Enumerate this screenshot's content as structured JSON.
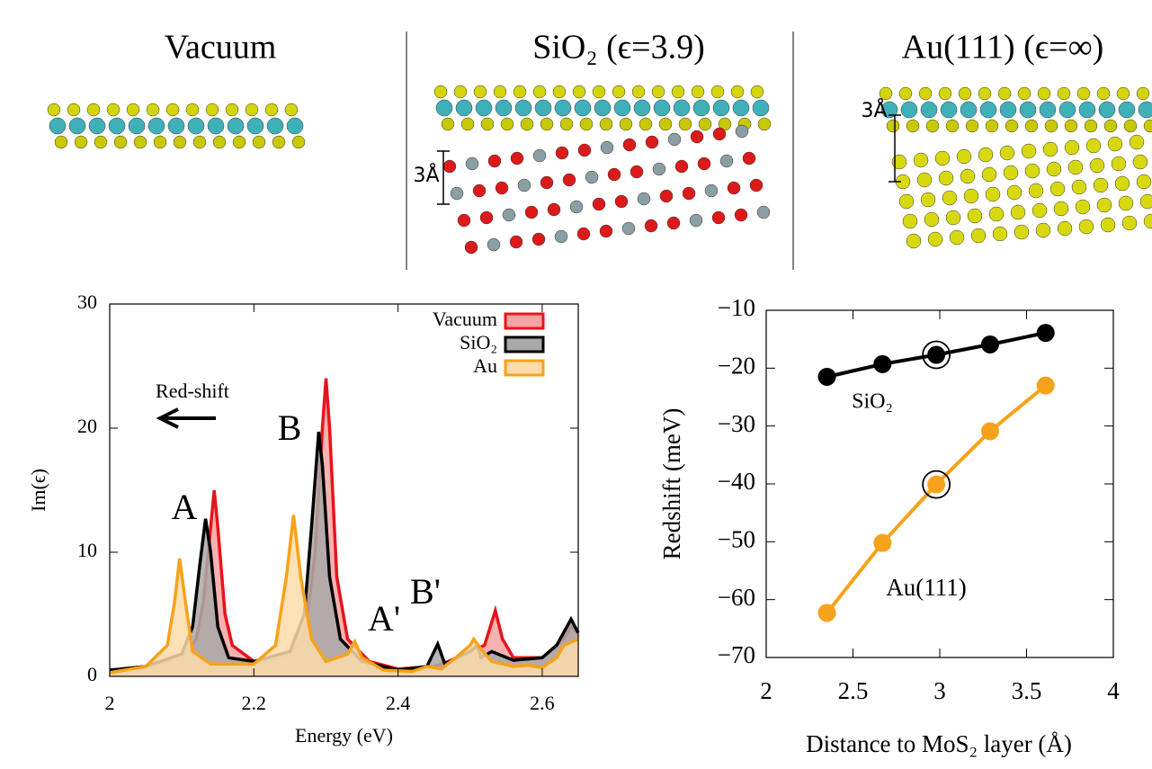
{
  "panels": [
    {
      "title": "Vacuum"
    },
    {
      "title": "SiO₂ (ϵ=3.9)",
      "scale_label": "3Å"
    },
    {
      "title": "Au(111) (ϵ=∞)",
      "scale_label": "3Å"
    }
  ],
  "chart_data": [
    {
      "type": "area",
      "xlabel": "Energy (eV)",
      "ylabel": "Im(ϵ)",
      "xlim": [
        2,
        2.65
      ],
      "xticks": [
        2,
        2.2,
        2.4,
        2.6
      ],
      "ylim": [
        0,
        30
      ],
      "yticks": [
        0,
        10,
        20,
        30
      ],
      "annotations": [
        "A",
        "B",
        "A'",
        "B'",
        "Red-shift"
      ],
      "legend": "upper right",
      "series": [
        {
          "name": "Vacuum",
          "color": "#e8141b",
          "fill_color": "#f4a3a3",
          "x": [
            2.0,
            2.05,
            2.1,
            2.12,
            2.13,
            2.14,
            2.145,
            2.15,
            2.16,
            2.17,
            2.2,
            2.24,
            2.27,
            2.285,
            2.295,
            2.3,
            2.305,
            2.315,
            2.33,
            2.36,
            2.4,
            2.45,
            2.47,
            2.5,
            2.52,
            2.535,
            2.545,
            2.56,
            2.6,
            2.63,
            2.64,
            2.65
          ],
          "values": [
            0.5,
            0.8,
            1.5,
            3,
            6,
            12,
            15,
            12,
            5,
            2.5,
            1.2,
            1.5,
            3,
            10,
            20,
            24,
            20,
            8,
            3,
            1.2,
            0.6,
            0.8,
            1.2,
            2.0,
            2.5,
            5.3,
            3,
            1.5,
            1.5,
            3,
            4.0,
            3.5
          ]
        },
        {
          "name": "SiO₂",
          "color": "#000000",
          "fill_color": "#a9a9a9",
          "x": [
            2.0,
            2.05,
            2.1,
            2.115,
            2.125,
            2.133,
            2.14,
            2.15,
            2.165,
            2.2,
            2.25,
            2.27,
            2.28,
            2.29,
            2.295,
            2.305,
            2.32,
            2.35,
            2.4,
            2.44,
            2.455,
            2.465,
            2.5,
            2.51,
            2.515,
            2.53,
            2.56,
            2.6,
            2.62,
            2.64,
            2.65
          ],
          "values": [
            0.5,
            0.8,
            1.8,
            4,
            9,
            12.7,
            10,
            4,
            1.5,
            1.2,
            2,
            5,
            12,
            19.7,
            17,
            8,
            3,
            1.2,
            0.5,
            0.8,
            2.6,
            1,
            2,
            2.5,
            1.5,
            2,
            1.3,
            1.5,
            2.5,
            4.6,
            3.5
          ]
        },
        {
          "name": "Au",
          "color": "#f7a21b",
          "fill_color": "#fbdcaa",
          "x": [
            2.0,
            2.05,
            2.08,
            2.09,
            2.097,
            2.105,
            2.115,
            2.14,
            2.2,
            2.23,
            2.245,
            2.255,
            2.265,
            2.28,
            2.3,
            2.33,
            2.34,
            2.35,
            2.38,
            2.42,
            2.44,
            2.46,
            2.48,
            2.5,
            2.505,
            2.515,
            2.53,
            2.56,
            2.58,
            2.6,
            2.62,
            2.63,
            2.65
          ],
          "values": [
            0.3,
            0.8,
            2.5,
            6,
            9.5,
            6,
            2,
            1.0,
            1.0,
            2.5,
            8,
            13,
            8,
            3,
            1.2,
            1.8,
            2.8,
            1.5,
            0.5,
            0.4,
            0.8,
            0.6,
            1.5,
            2.5,
            3.0,
            2.2,
            1.2,
            0.8,
            0.9,
            0.7,
            1.5,
            2.5,
            3.0
          ]
        }
      ]
    },
    {
      "type": "line",
      "xlabel": "Distance to MoS₂ layer (Å)",
      "ylabel": "Redshift (meV)",
      "xlim": [
        2,
        4
      ],
      "xticks": [
        2,
        2.5,
        3,
        3.5,
        4
      ],
      "ylim": [
        -70,
        -10
      ],
      "yticks": [
        {
          "value": -70,
          "label": "−70"
        },
        {
          "value": -60,
          "label": "−60"
        },
        {
          "value": -50,
          "label": "−50"
        },
        {
          "value": -40,
          "label": "−40"
        },
        {
          "value": -30,
          "label": "−30"
        },
        {
          "value": -20,
          "label": "−20"
        },
        {
          "value": -10,
          "label": "−10"
        }
      ],
      "x": [
        2.35,
        2.67,
        2.98,
        3.29,
        3.61
      ],
      "highlight_index": 2,
      "series": [
        {
          "name": "SiO₂",
          "color": "#000000",
          "values": [
            -21.5,
            -19.3,
            -17.7,
            -15.9,
            -13.9
          ]
        },
        {
          "name": "Au(111)",
          "color": "#f7a21b",
          "values": [
            -62.3,
            -50.2,
            -40.1,
            -30.9,
            -23.0
          ]
        }
      ]
    }
  ]
}
